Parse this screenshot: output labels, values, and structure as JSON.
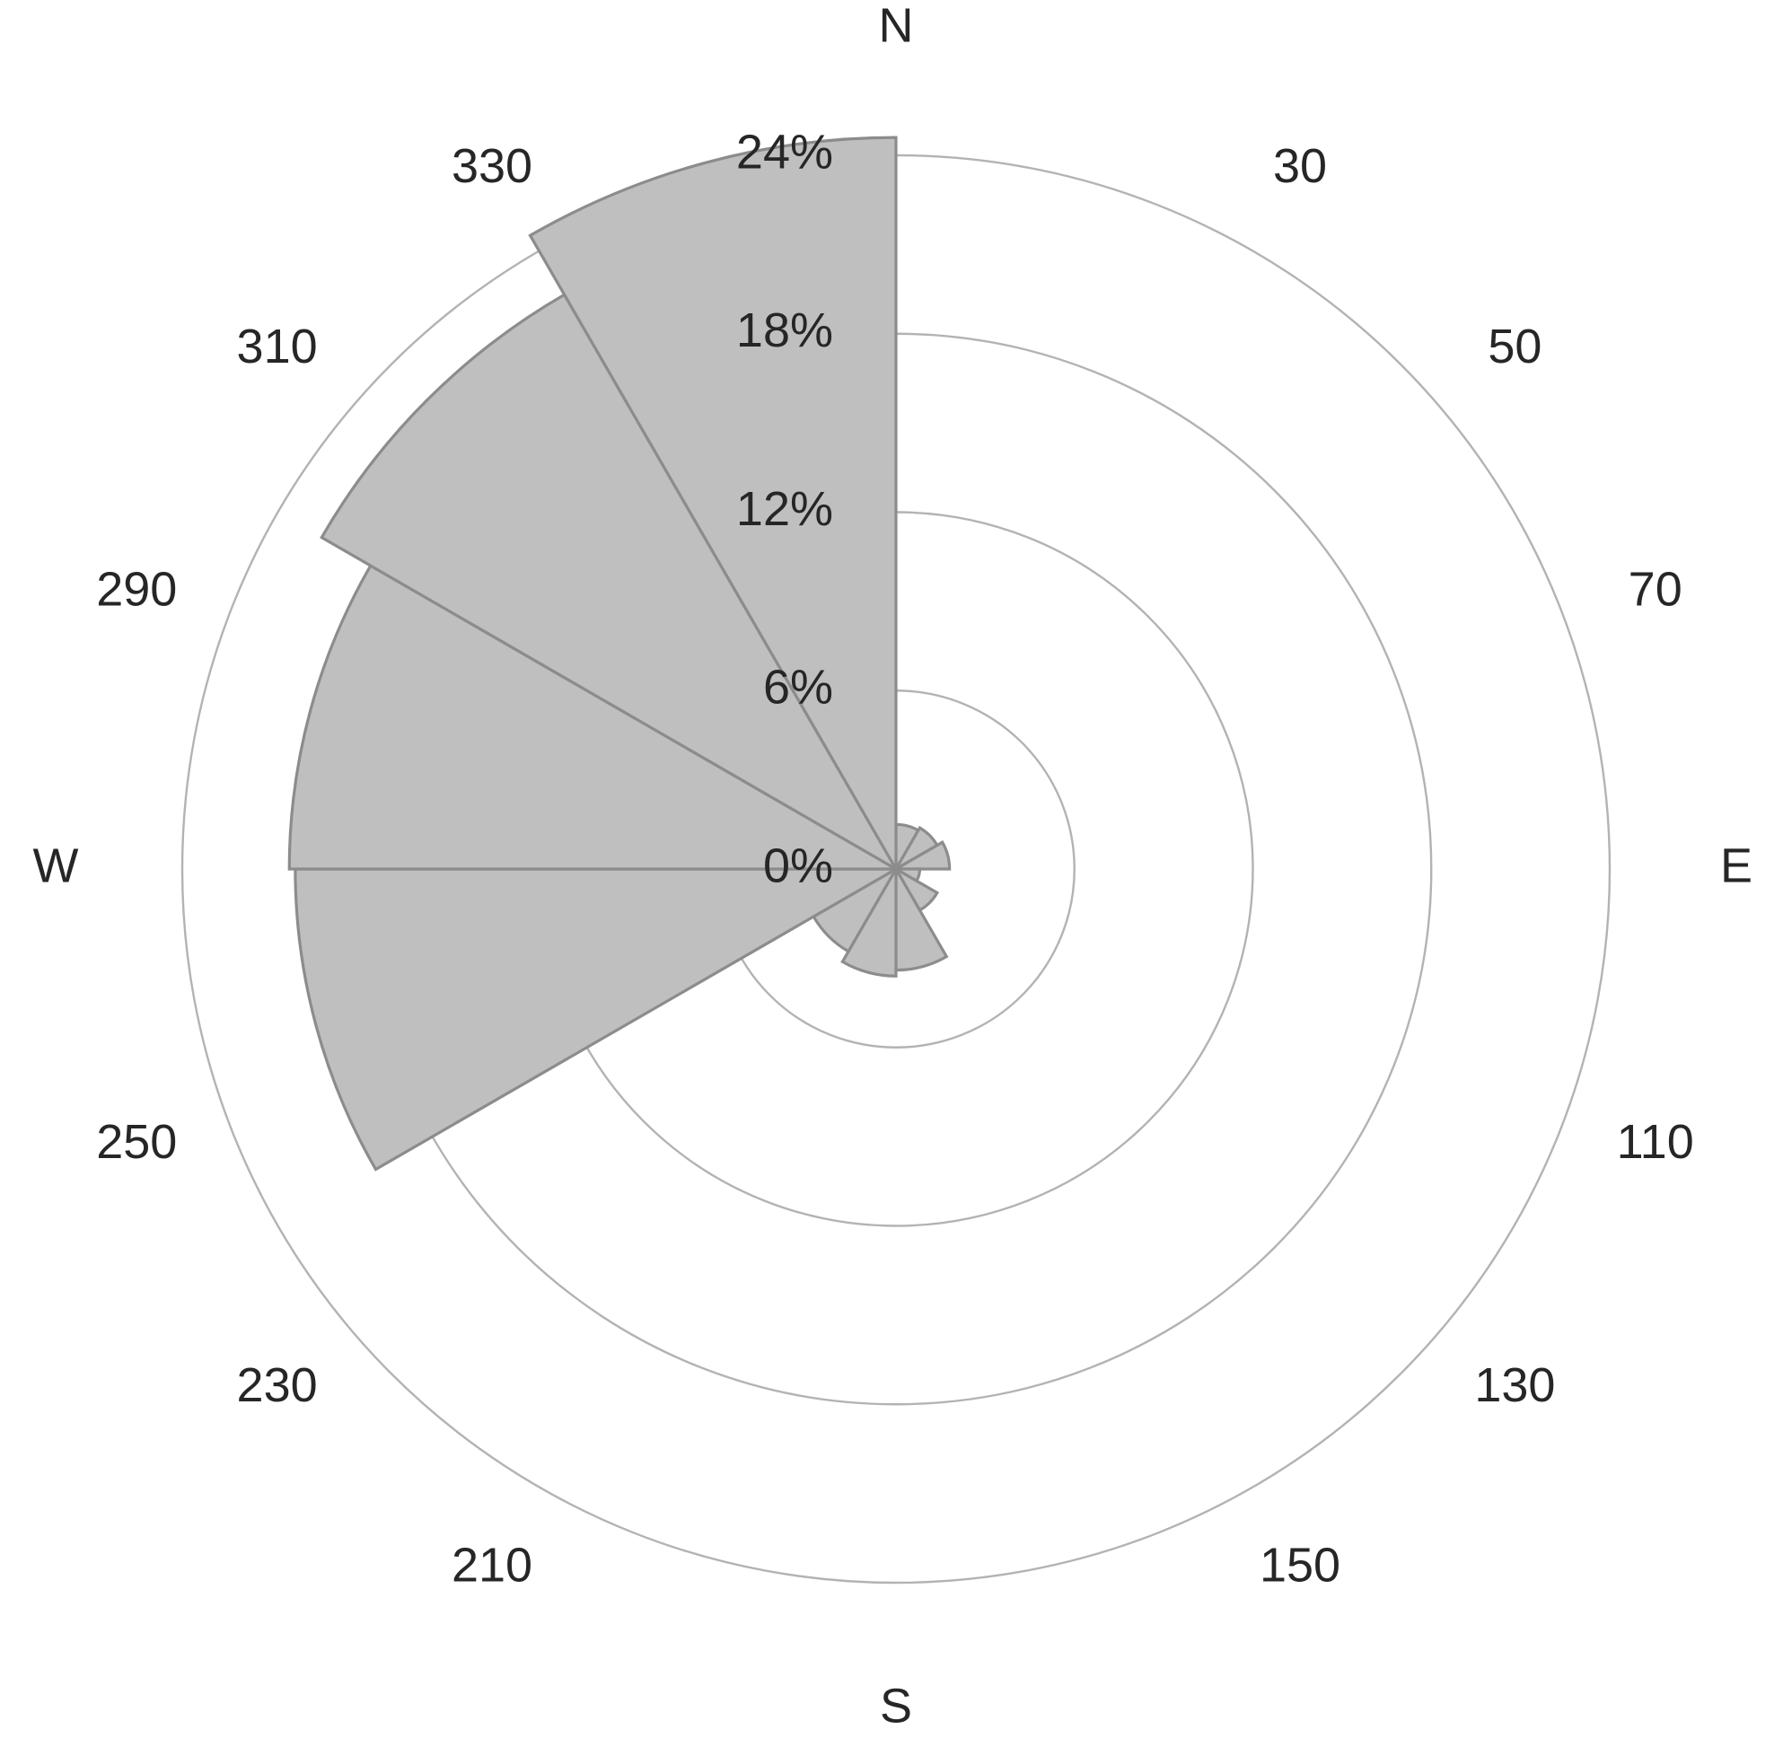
{
  "chart_data": {
    "type": "polar-bar",
    "title": "",
    "radial_axis": {
      "min": 0,
      "max": 24,
      "unit": "%",
      "rings": [
        0,
        6,
        12,
        18,
        24
      ],
      "ring_labels": [
        "0%",
        "6%",
        "12%",
        "18%",
        "24%"
      ]
    },
    "angle_labels": [
      "30",
      "50",
      "70",
      "110",
      "130",
      "150",
      "210",
      "230",
      "250",
      "290",
      "310",
      "330"
    ],
    "direction_labels": [
      "N",
      "E",
      "S",
      "W"
    ],
    "bin_width_deg": 30,
    "series": [
      {
        "values": [
          {
            "direction": 15,
            "value": 1.5
          },
          {
            "direction": 45,
            "value": 1.6
          },
          {
            "direction": 75,
            "value": 1.8
          },
          {
            "direction": 105,
            "value": 0.8
          },
          {
            "direction": 135,
            "value": 1.6
          },
          {
            "direction": 165,
            "value": 3.4
          },
          {
            "direction": 195,
            "value": 3.6
          },
          {
            "direction": 225,
            "value": 3.2
          },
          {
            "direction": 255,
            "value": 20.2
          },
          {
            "direction": 285,
            "value": 20.4
          },
          {
            "direction": 315,
            "value": 22.3
          },
          {
            "direction": 345,
            "value": 24.6
          }
        ]
      }
    ],
    "grid": true,
    "legend": "none"
  }
}
